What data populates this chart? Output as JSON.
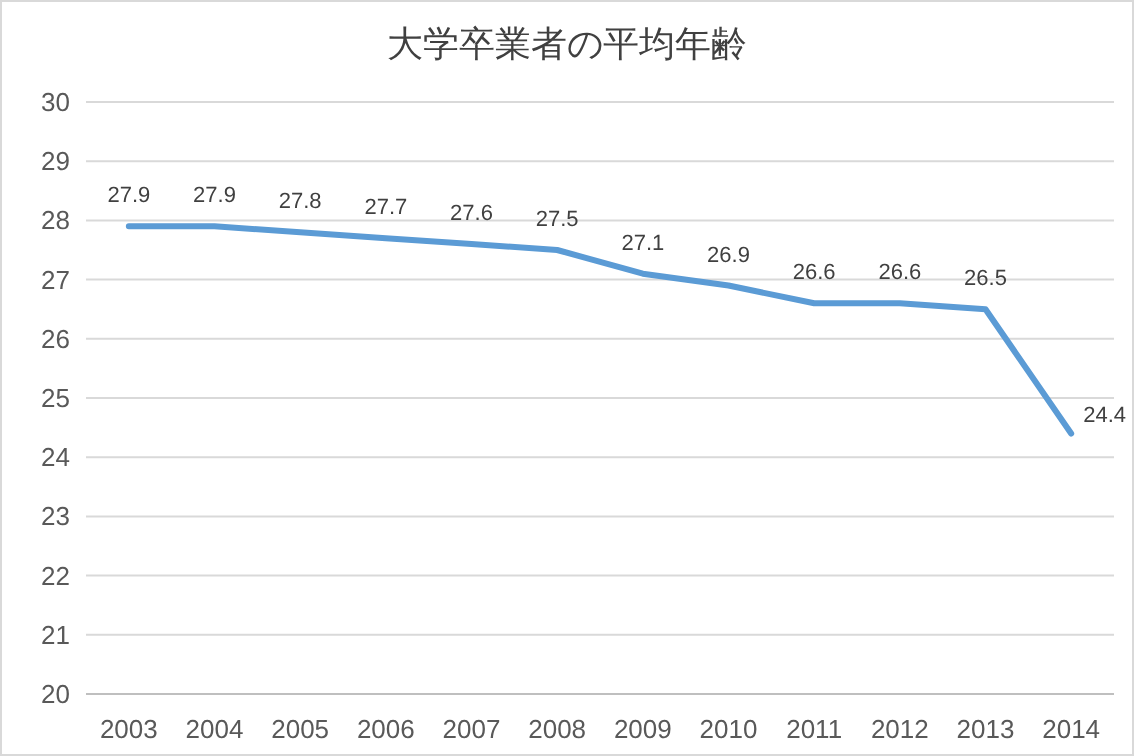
{
  "chart_data": {
    "type": "line",
    "title": "大学卒業者の平均年齢",
    "categories": [
      "2003",
      "2004",
      "2005",
      "2006",
      "2007",
      "2008",
      "2009",
      "2010",
      "2011",
      "2012",
      "2013",
      "2014"
    ],
    "series": [
      {
        "color": "#5b9bd5",
        "values": [
          27.9,
          27.9,
          27.8,
          27.7,
          27.6,
          27.5,
          27.1,
          26.9,
          26.6,
          26.6,
          26.5,
          24.4
        ]
      }
    ],
    "ylim": [
      20,
      30
    ],
    "yticks": [
      20,
      21,
      22,
      23,
      24,
      25,
      26,
      27,
      28,
      29,
      30
    ],
    "grid": "y",
    "data_labels": true,
    "line_style": "solid"
  }
}
